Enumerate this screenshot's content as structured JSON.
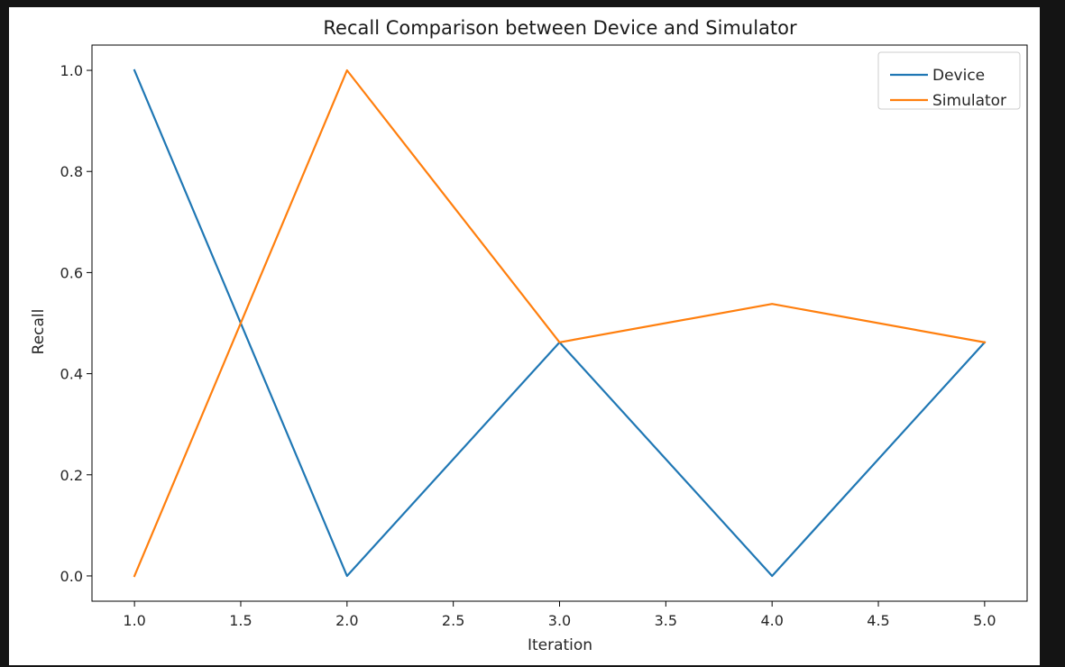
{
  "chart_data": {
    "type": "line",
    "title": "Recall Comparison between Device and Simulator",
    "xlabel": "Iteration",
    "ylabel": "Recall",
    "x": [
      1,
      2,
      3,
      4,
      5
    ],
    "xlim": [
      0.8,
      5.2
    ],
    "ylim": [
      -0.05,
      1.05
    ],
    "xticks": [
      1.0,
      1.5,
      2.0,
      2.5,
      3.0,
      3.5,
      4.0,
      4.5,
      5.0
    ],
    "xtick_labels": [
      "1.0",
      "1.5",
      "2.0",
      "2.5",
      "3.0",
      "3.5",
      "4.0",
      "4.5",
      "5.0"
    ],
    "yticks": [
      0.0,
      0.2,
      0.4,
      0.6,
      0.8,
      1.0
    ],
    "ytick_labels": [
      "0.0",
      "0.2",
      "0.4",
      "0.6",
      "0.8",
      "1.0"
    ],
    "grid": false,
    "legend_position": "top-right",
    "series": [
      {
        "name": "Device",
        "color": "#1f77b4",
        "values": [
          1.0,
          0.0,
          0.462,
          0.0,
          0.462
        ]
      },
      {
        "name": "Simulator",
        "color": "#ff7f0e",
        "values": [
          0.0,
          1.0,
          0.462,
          0.538,
          0.462
        ]
      }
    ]
  }
}
